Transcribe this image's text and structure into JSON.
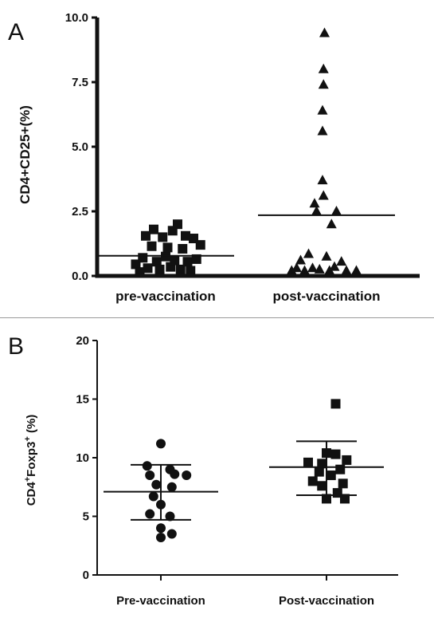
{
  "panels": [
    {
      "letter": "A",
      "ylabel": "CD4+CD25+(%)",
      "ylim": [
        0,
        10
      ],
      "yticks": [
        0,
        2.5,
        5,
        7.5,
        10
      ],
      "ytick_labels": [
        "0.0",
        "2.5",
        "5.0",
        "7.5",
        "10.0"
      ]
    },
    {
      "letter": "B",
      "ylabel_parts": [
        "CD4",
        "+",
        "Foxp3",
        "+",
        " (%)"
      ],
      "ylim": [
        0,
        20
      ],
      "yticks": [
        0,
        5,
        10,
        15,
        20
      ],
      "ytick_labels": [
        "0",
        "5",
        "10",
        "15",
        "20"
      ]
    }
  ],
  "chart_data": [
    {
      "type": "scatter",
      "panel": "A",
      "categories": [
        "pre-vaccination",
        "post-vaccination"
      ],
      "ylabel": "CD4+CD25+(%)",
      "ylim": [
        0,
        10
      ],
      "series": [
        {
          "category": "pre-vaccination",
          "marker": "square",
          "points": [
            {
              "x": -0.3,
              "y": 0.45
            },
            {
              "x": -0.26,
              "y": 0.15
            },
            {
              "x": -0.23,
              "y": 0.7
            },
            {
              "x": -0.2,
              "y": 1.55
            },
            {
              "x": -0.18,
              "y": 0.3
            },
            {
              "x": -0.14,
              "y": 1.15
            },
            {
              "x": -0.12,
              "y": 1.8
            },
            {
              "x": -0.09,
              "y": 0.55
            },
            {
              "x": -0.06,
              "y": 0.25
            },
            {
              "x": -0.03,
              "y": 1.5
            },
            {
              "x": 0.0,
              "y": 0.75
            },
            {
              "x": 0.02,
              "y": 1.1
            },
            {
              "x": 0.05,
              "y": 0.35
            },
            {
              "x": 0.07,
              "y": 1.75
            },
            {
              "x": 0.09,
              "y": 0.6
            },
            {
              "x": 0.12,
              "y": 2.0
            },
            {
              "x": 0.15,
              "y": 0.25
            },
            {
              "x": 0.17,
              "y": 1.05
            },
            {
              "x": 0.2,
              "y": 1.55
            },
            {
              "x": 0.22,
              "y": 0.55
            },
            {
              "x": 0.25,
              "y": 0.2
            },
            {
              "x": 0.28,
              "y": 1.45
            },
            {
              "x": 0.31,
              "y": 0.65
            },
            {
              "x": 0.35,
              "y": 1.2
            }
          ],
          "mean": 0.78
        },
        {
          "category": "post-vaccination",
          "marker": "triangle",
          "points": [
            {
              "x": -0.35,
              "y": 0.2
            },
            {
              "x": -0.3,
              "y": 0.3
            },
            {
              "x": -0.26,
              "y": 0.6
            },
            {
              "x": -0.22,
              "y": 0.2
            },
            {
              "x": -0.18,
              "y": 0.85
            },
            {
              "x": -0.14,
              "y": 0.3
            },
            {
              "x": -0.12,
              "y": 2.8
            },
            {
              "x": -0.1,
              "y": 2.5
            },
            {
              "x": -0.07,
              "y": 0.25
            },
            {
              "x": -0.04,
              "y": 3.7
            },
            {
              "x": -0.04,
              "y": 5.6
            },
            {
              "x": -0.04,
              "y": 6.4
            },
            {
              "x": -0.03,
              "y": 7.4
            },
            {
              "x": -0.03,
              "y": 8.0
            },
            {
              "x": -0.02,
              "y": 9.4
            },
            {
              "x": -0.03,
              "y": 3.1
            },
            {
              "x": 0.0,
              "y": 0.75
            },
            {
              "x": 0.03,
              "y": 0.2
            },
            {
              "x": 0.05,
              "y": 2.0
            },
            {
              "x": 0.08,
              "y": 0.35
            },
            {
              "x": 0.1,
              "y": 2.5
            },
            {
              "x": 0.15,
              "y": 0.55
            },
            {
              "x": 0.2,
              "y": 0.2
            },
            {
              "x": 0.3,
              "y": 0.2
            }
          ],
          "mean": 2.35
        }
      ]
    },
    {
      "type": "scatter",
      "panel": "B",
      "categories": [
        "Pre-vaccination",
        "Post-vaccination"
      ],
      "ylabel": "CD4+Foxp3+ (%)",
      "ylim": [
        0,
        20
      ],
      "series": [
        {
          "category": "Pre-vaccination",
          "marker": "circle",
          "points": [
            {
              "x": 0.0,
              "y": 11.2
            },
            {
              "x": -0.15,
              "y": 9.3
            },
            {
              "x": 0.1,
              "y": 9.0
            },
            {
              "x": -0.12,
              "y": 8.5
            },
            {
              "x": 0.15,
              "y": 8.6
            },
            {
              "x": 0.28,
              "y": 8.5
            },
            {
              "x": -0.05,
              "y": 7.7
            },
            {
              "x": 0.12,
              "y": 7.5
            },
            {
              "x": -0.08,
              "y": 6.7
            },
            {
              "x": 0.0,
              "y": 6.0
            },
            {
              "x": -0.12,
              "y": 5.2
            },
            {
              "x": 0.1,
              "y": 5.0
            },
            {
              "x": 0.0,
              "y": 4.0
            },
            {
              "x": 0.12,
              "y": 3.5
            },
            {
              "x": 0.0,
              "y": 3.2
            }
          ],
          "mean": 7.1,
          "error_upper": 9.4,
          "error_lower": 4.7
        },
        {
          "category": "Post-vaccination",
          "marker": "square",
          "points": [
            {
              "x": 0.1,
              "y": 14.6
            },
            {
              "x": 0.0,
              "y": 10.4
            },
            {
              "x": 0.1,
              "y": 10.3
            },
            {
              "x": 0.22,
              "y": 9.8
            },
            {
              "x": -0.2,
              "y": 9.6
            },
            {
              "x": -0.05,
              "y": 9.5
            },
            {
              "x": 0.15,
              "y": 9.0
            },
            {
              "x": -0.08,
              "y": 8.8
            },
            {
              "x": 0.05,
              "y": 8.5
            },
            {
              "x": -0.15,
              "y": 8.0
            },
            {
              "x": 0.18,
              "y": 7.8
            },
            {
              "x": -0.05,
              "y": 7.6
            },
            {
              "x": 0.12,
              "y": 7.0
            },
            {
              "x": 0.0,
              "y": 6.5
            },
            {
              "x": 0.2,
              "y": 6.5
            }
          ],
          "mean": 9.2,
          "error_upper": 11.4,
          "error_lower": 6.8
        }
      ]
    }
  ]
}
